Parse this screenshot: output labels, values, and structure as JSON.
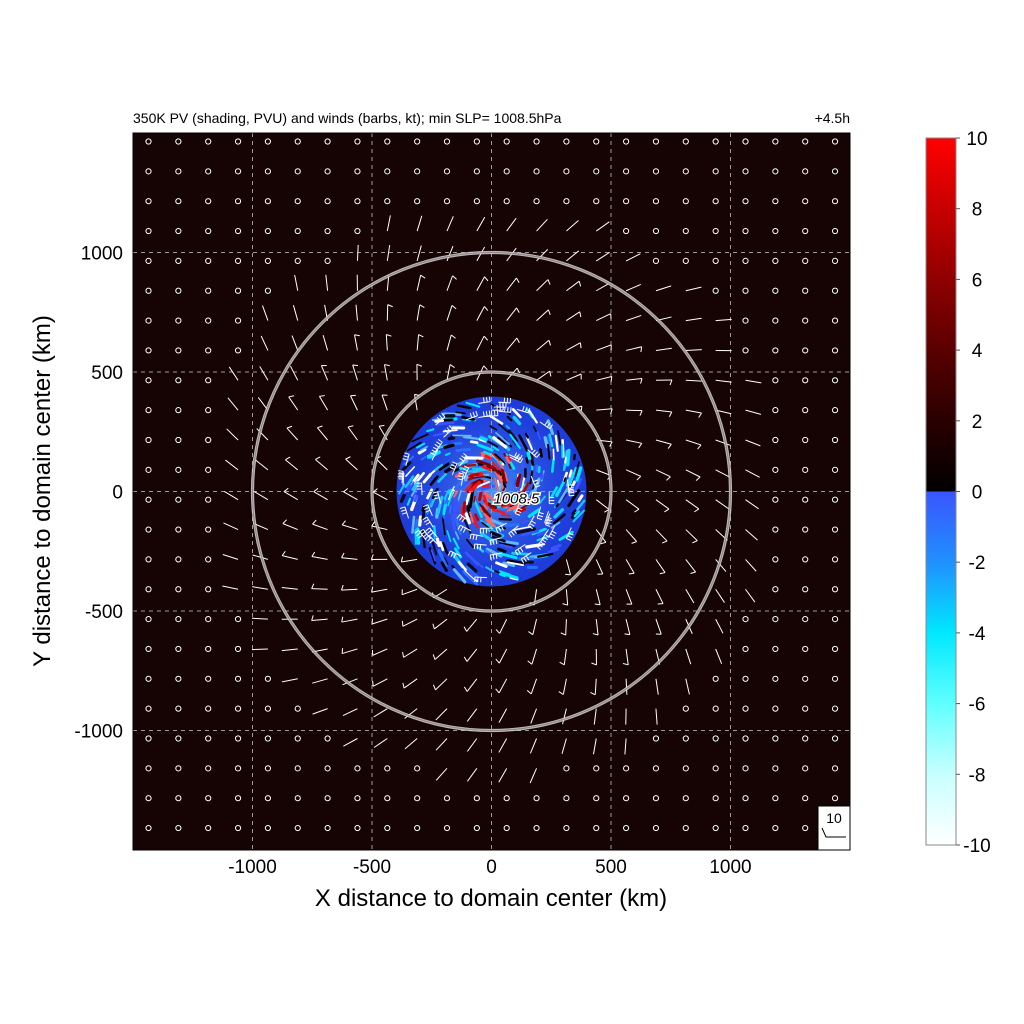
{
  "chart_data": {
    "type": "heatmap",
    "title": "350K PV (shading, PVU) and winds (barbs, kt); min SLP= 1008.5hPa",
    "time_label": "+4.5h",
    "xlabel": "X distance to domain center (km)",
    "ylabel": "Y distance to domain center (km)",
    "xlim": [
      -1500,
      1500
    ],
    "ylim": [
      -1500,
      1500
    ],
    "x_ticks": [
      -1000,
      -500,
      0,
      500,
      1000
    ],
    "y_ticks": [
      1000,
      500,
      0,
      -500,
      -1000
    ],
    "x_tick_labels": [
      "-1000",
      "-500",
      "0",
      "500",
      "1000"
    ],
    "y_tick_labels": [
      "1000",
      "500",
      "0",
      "-500",
      "-1000"
    ],
    "grid": true,
    "range_rings_km": [
      500,
      1000
    ],
    "center_label": "1008.5",
    "colorbar": {
      "min": -10,
      "max": 10,
      "tick_values": [
        10,
        8,
        6,
        4,
        2,
        0,
        -2,
        -4,
        -6,
        -8,
        -10
      ],
      "tick_labels": [
        "10",
        "8",
        "6",
        "4",
        "2",
        "0",
        "-2",
        "-4",
        "-6",
        "-8",
        "-10"
      ],
      "colors_negative": [
        "#ffffff",
        "#a0ffff",
        "#00ffff",
        "#20a0ff",
        "#3050ff"
      ],
      "colors_positive": [
        "#000000",
        "#3a0000",
        "#800000",
        "#c00000",
        "#ff0000"
      ]
    },
    "barb_reference": "10",
    "field_background_color": "#160404"
  }
}
